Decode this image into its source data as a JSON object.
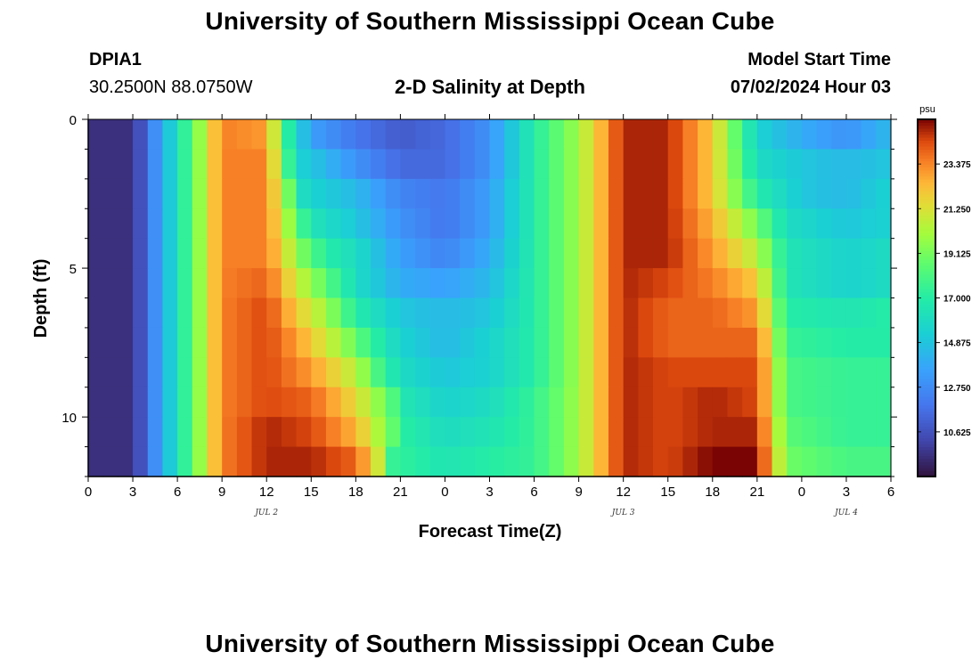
{
  "header": {
    "title": "University of Southern Mississippi Ocean Cube",
    "station": "DPIA1",
    "coords": "30.2500N  88.0750W",
    "chart_title": "2-D Salinity at Depth",
    "model_label": "Model Start Time",
    "model_time": "07/02/2024 Hour 03",
    "bottom_title": "University of Southern Mississippi Ocean Cube"
  },
  "chart_data": {
    "type": "heatmap",
    "title": "2-D Salinity at Depth",
    "xlabel": "Forecast Time(Z)",
    "ylabel": "Depth (ft)",
    "x_tick_labels": [
      "0",
      "3",
      "6",
      "9",
      "12",
      "15",
      "18",
      "21",
      "0",
      "3",
      "6",
      "9",
      "12",
      "15",
      "18",
      "21",
      "0",
      "3",
      "6"
    ],
    "date_labels": [
      {
        "label": "JUL 2",
        "at_hour": 12
      },
      {
        "label": "JUL 3",
        "at_hour": 36
      },
      {
        "label": "JUL 4",
        "at_hour": 51
      }
    ],
    "x_range_hours": [
      0,
      54
    ],
    "y_range_ft": [
      0,
      12
    ],
    "y_ticks": [
      "0",
      "5",
      "10"
    ],
    "colorbar_unit": "psu",
    "colorbar_range": [
      8.5,
      25.5
    ],
    "colorbar_ticks": [
      "23.375",
      "21.250",
      "19.125",
      "17.000",
      "14.875",
      "12.750",
      "10.625"
    ],
    "colorbar_tick_values": [
      23.375,
      21.25,
      19.125,
      17.0,
      14.875,
      12.75,
      10.625
    ],
    "depth_rows_ft": [
      0.5,
      1.5,
      2.5,
      3.5,
      4.5,
      5.5,
      6.5,
      7.5,
      8.5,
      9.5,
      10.5,
      11.5
    ],
    "salinity_by_row": [
      {
        "depth_ft": 0.5,
        "times": [
          0,
          3,
          5,
          7,
          9,
          12,
          13.5,
          15,
          18,
          21,
          24,
          27,
          30,
          33,
          36,
          39,
          42,
          45,
          48,
          51,
          54
        ],
        "values": [
          9.5,
          9.5,
          14,
          18.5,
          23.5,
          23,
          17,
          13.5,
          12,
          11,
          11.5,
          13,
          17,
          20,
          25,
          25,
          22,
          15.5,
          14,
          13,
          14.5
        ]
      },
      {
        "depth_ft": 1.5,
        "times": [
          0,
          3,
          5,
          7,
          9,
          12,
          14,
          15,
          18,
          21,
          24,
          27,
          30,
          33,
          36,
          39,
          42,
          45,
          48,
          51,
          54
        ],
        "values": [
          9.5,
          9.5,
          14,
          18.5,
          23.5,
          23.5,
          15.5,
          15,
          13,
          11.5,
          11.5,
          13,
          17,
          20,
          25,
          25,
          22,
          16,
          15,
          14.5,
          15
        ]
      },
      {
        "depth_ft": 2.5,
        "times": [
          0,
          3,
          5,
          7,
          9,
          12,
          14.5,
          15,
          18,
          21,
          24,
          27,
          30,
          33,
          36,
          39,
          42,
          45,
          48,
          51,
          54
        ],
        "values": [
          9.5,
          9.5,
          14,
          18.5,
          23.5,
          23.5,
          16,
          15.5,
          14.5,
          12.5,
          12,
          13.5,
          17,
          20,
          25,
          25,
          22,
          17,
          15,
          14.5,
          15.5
        ]
      },
      {
        "depth_ft": 3.5,
        "times": [
          0,
          3,
          5,
          7,
          9,
          12,
          14.5,
          15,
          18,
          21,
          24,
          27,
          30,
          33,
          36,
          39,
          42,
          45,
          47,
          51,
          54
        ],
        "values": [
          9.5,
          9.5,
          14,
          18.5,
          23.5,
          23.5,
          17.5,
          16.5,
          15,
          13,
          12,
          13.5,
          17,
          20,
          25,
          25,
          22.5,
          19,
          16,
          15,
          15.5
        ]
      },
      {
        "depth_ft": 4.5,
        "times": [
          0,
          3,
          5,
          7,
          9,
          12,
          14.5,
          16,
          18,
          21,
          24,
          27,
          30,
          33,
          36,
          39,
          42,
          45,
          47,
          51,
          54
        ],
        "values": [
          9.5,
          9.5,
          14,
          18.5,
          23.5,
          23.5,
          19,
          17,
          16,
          13.5,
          12.5,
          14,
          17,
          20,
          25,
          25,
          23,
          20.5,
          16.5,
          15.5,
          16
        ]
      },
      {
        "depth_ft": 5.5,
        "times": [
          0,
          3,
          5,
          7,
          9,
          12,
          14,
          16,
          18,
          21,
          24,
          27,
          30,
          33,
          36,
          39,
          42,
          45,
          47,
          51,
          54
        ],
        "values": [
          9.5,
          9.5,
          14,
          18.5,
          23.5,
          24,
          21,
          18.5,
          16,
          14,
          13.5,
          14.5,
          17,
          20,
          25,
          24.5,
          23.5,
          22,
          16.5,
          15.5,
          16
        ]
      },
      {
        "depth_ft": 6.5,
        "times": [
          0,
          3,
          5,
          7,
          9,
          12,
          14,
          16,
          18,
          21,
          24,
          27,
          30,
          33,
          36,
          39,
          42,
          45,
          47,
          51,
          54
        ],
        "values": [
          9.5,
          9.5,
          14,
          18.5,
          23.5,
          24.5,
          22,
          20,
          17,
          15,
          14.5,
          15,
          17,
          20,
          25,
          24,
          24,
          23,
          17,
          16.5,
          17
        ]
      },
      {
        "depth_ft": 7.5,
        "times": [
          0,
          3,
          5,
          7,
          9,
          12,
          14,
          17,
          19,
          21,
          24,
          27,
          30,
          33,
          36,
          39,
          42,
          45,
          47,
          51,
          54
        ],
        "values": [
          9.5,
          9.5,
          14,
          18.5,
          23.5,
          24.5,
          23,
          20,
          17.5,
          15.5,
          14.5,
          15.5,
          17,
          20,
          25,
          24,
          24,
          24,
          17.5,
          17,
          17
        ]
      },
      {
        "depth_ft": 8.5,
        "times": [
          0,
          3,
          5,
          7,
          9,
          12,
          15,
          18,
          19.5,
          21,
          24,
          27,
          30,
          33,
          36,
          39,
          42,
          45,
          47,
          51,
          54
        ],
        "values": [
          9.5,
          9.5,
          14,
          18.5,
          23.5,
          24.5,
          23,
          20.5,
          18,
          16,
          15,
          15.5,
          17,
          20,
          25,
          24.5,
          24.5,
          24.5,
          18,
          17.5,
          17.5
        ]
      },
      {
        "depth_ft": 9.5,
        "times": [
          0,
          3,
          5,
          7,
          9,
          12,
          15,
          18,
          20,
          21.5,
          24,
          27,
          30,
          33,
          36,
          39,
          42,
          45,
          47,
          51,
          54
        ],
        "values": [
          9.5,
          9.5,
          14,
          18.5,
          23.5,
          24.5,
          24,
          21.5,
          19,
          16.5,
          15.5,
          16,
          17.5,
          20,
          25,
          24.5,
          25,
          24.5,
          18,
          17.5,
          17.5
        ]
      },
      {
        "depth_ft": 10.5,
        "times": [
          0,
          3,
          5,
          7,
          9,
          12,
          15,
          18,
          20,
          21.5,
          24,
          27,
          30,
          33,
          36,
          39,
          42,
          45,
          47,
          51,
          54
        ],
        "values": [
          9.5,
          9.5,
          14,
          18.5,
          23.5,
          25,
          24.5,
          22.5,
          19.5,
          17,
          16,
          16.5,
          17.5,
          20,
          25,
          24.5,
          25,
          25,
          18.5,
          17.5,
          17.5
        ]
      },
      {
        "depth_ft": 11.5,
        "times": [
          0,
          3,
          5,
          7,
          9,
          12,
          15,
          18,
          19.5,
          20.5,
          24,
          27,
          30,
          33,
          36,
          39,
          42,
          45,
          47,
          51,
          54
        ],
        "values": [
          9.5,
          9.5,
          14,
          18.5,
          23.5,
          25,
          25,
          24,
          21,
          17.5,
          16.5,
          17,
          17.5,
          20,
          25,
          24.5,
          25.5,
          25.5,
          19,
          18,
          18
        ]
      }
    ]
  }
}
